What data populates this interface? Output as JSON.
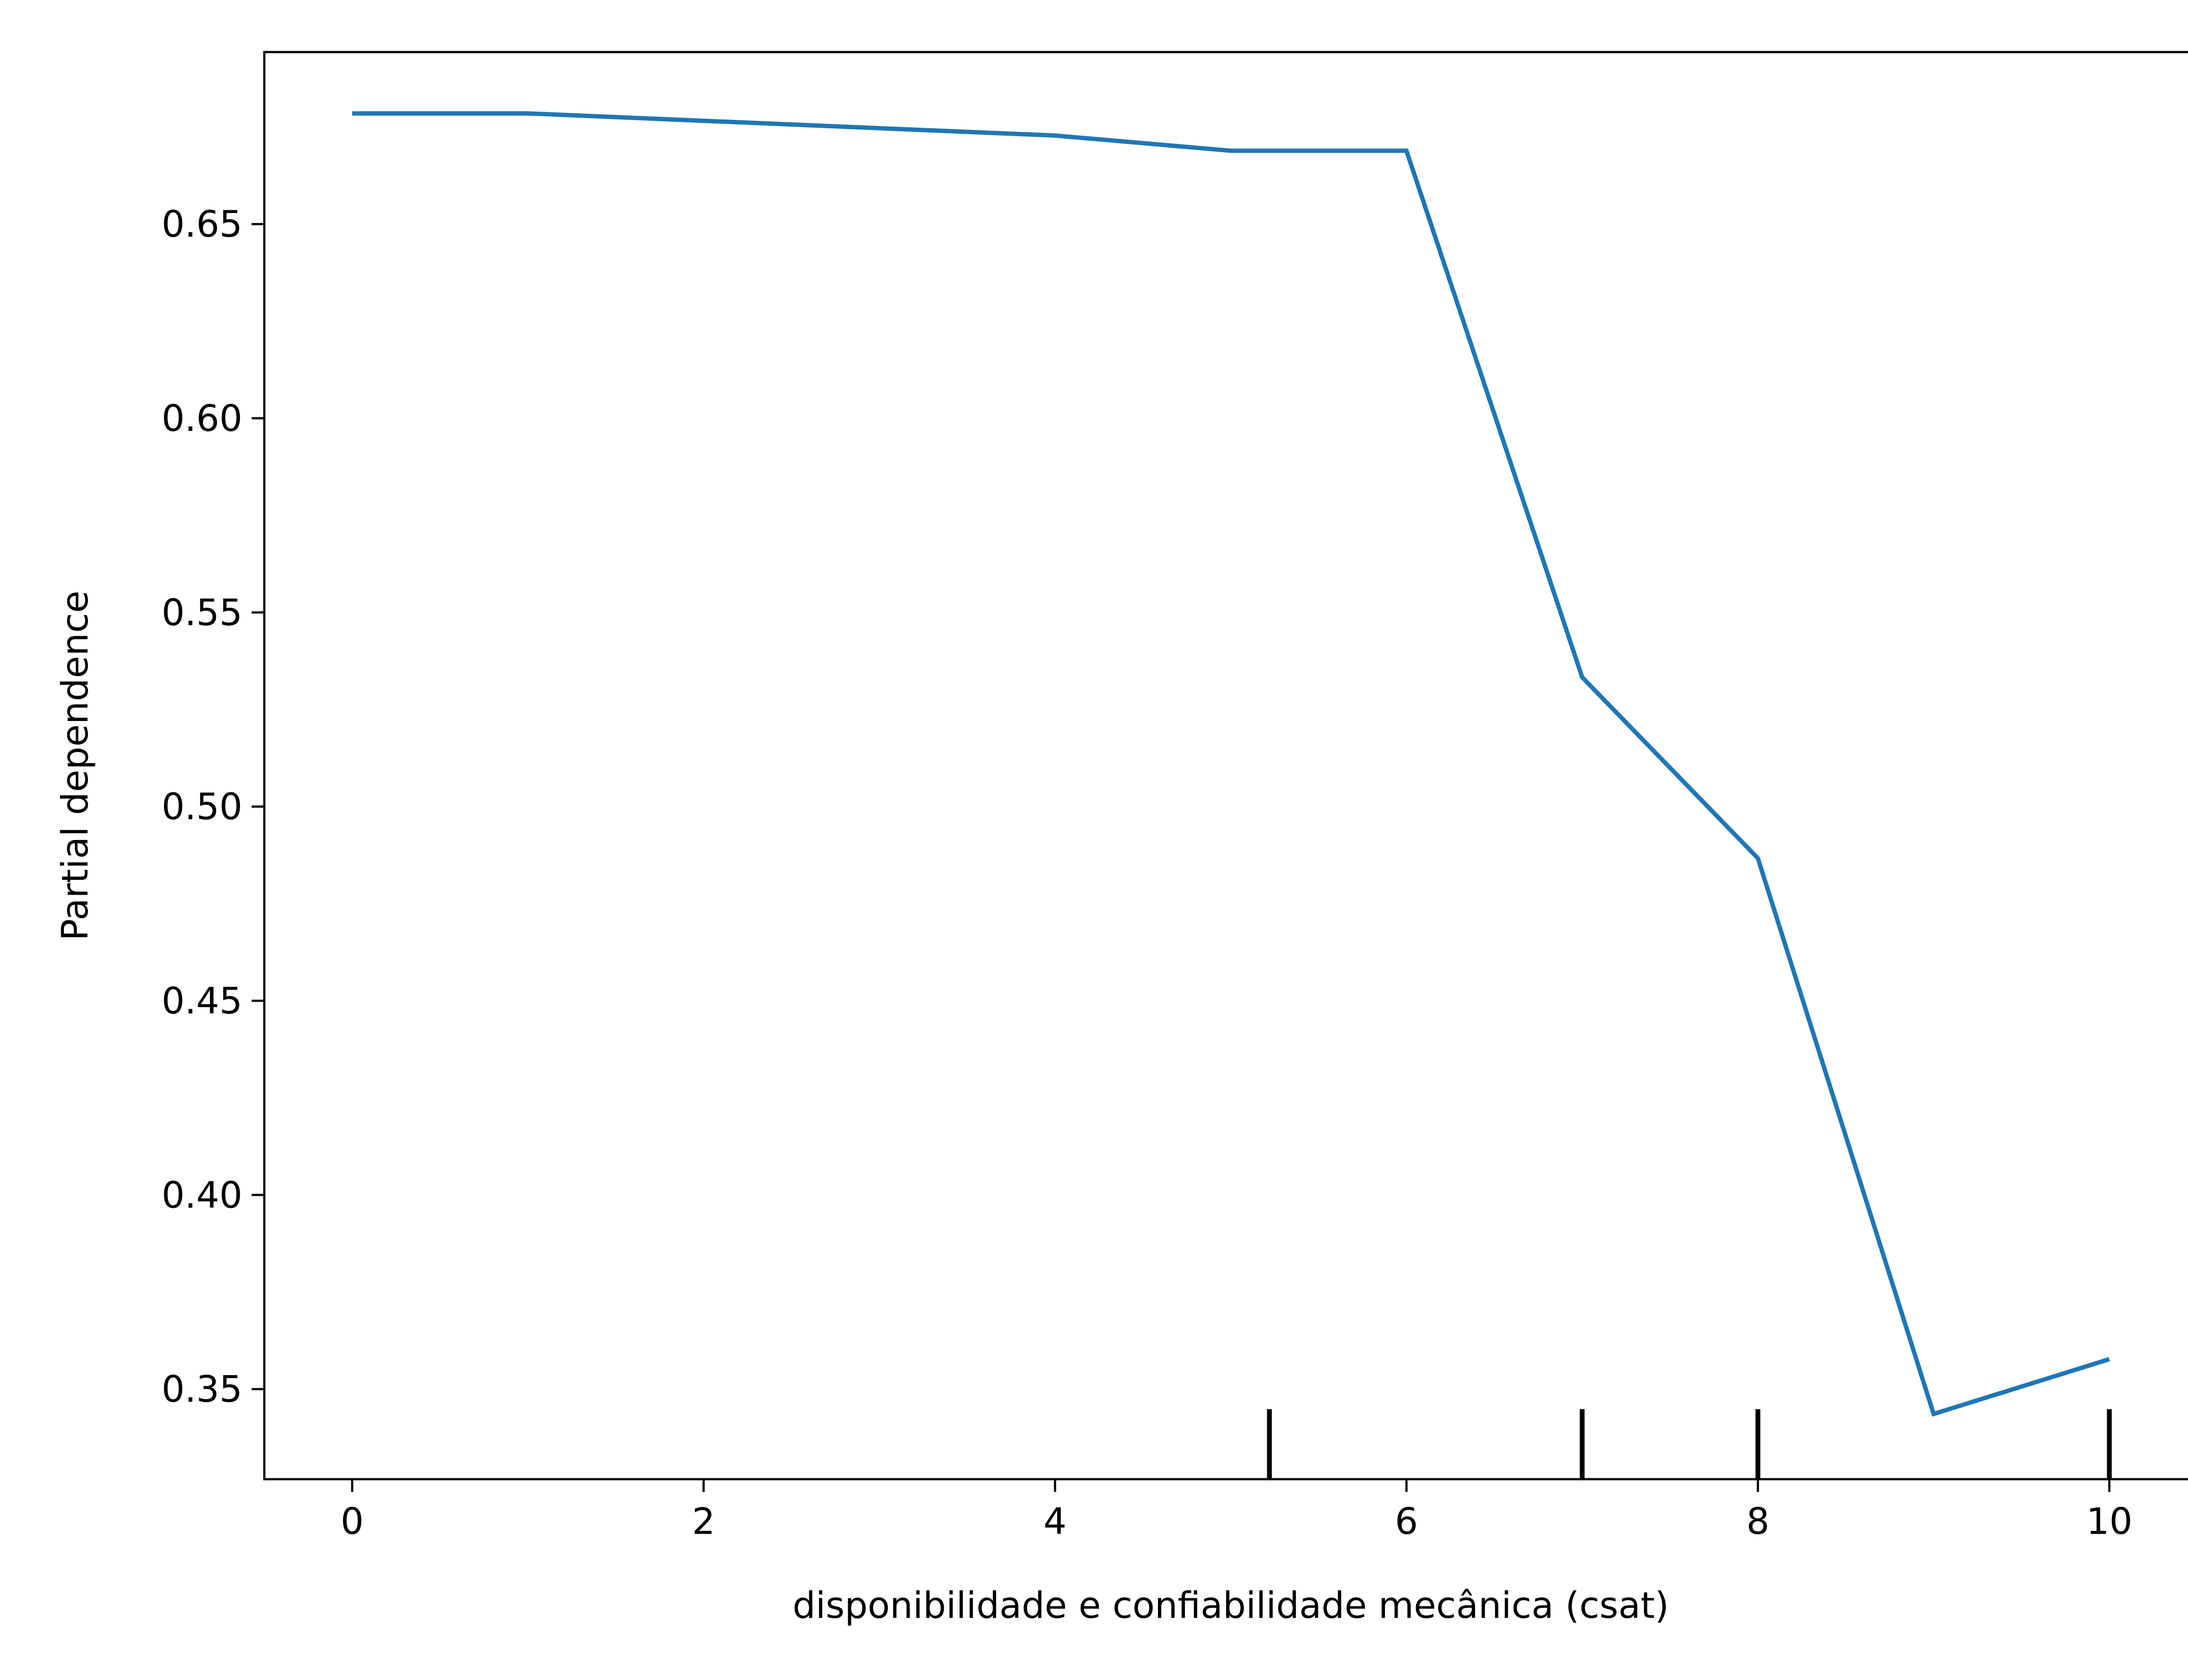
{
  "chart_data": {
    "type": "line",
    "xlabel": "disponibilidade e confiabilidade mecânica  (csat)",
    "ylabel": "Partial dependence",
    "xlim": [
      -0.5,
      10.5
    ],
    "ylim": [
      0.3268,
      0.6943
    ],
    "x_ticks": [
      0,
      2,
      4,
      6,
      8,
      10
    ],
    "y_ticks": [
      0.35,
      0.4,
      0.45,
      0.5,
      0.55,
      0.6,
      0.65
    ],
    "y_tick_labels": [
      "0.35",
      "0.40",
      "0.45",
      "0.50",
      "0.55",
      "0.60",
      "0.65"
    ],
    "x_tick_labels": [
      "0",
      "2",
      "4",
      "6",
      "8",
      "10"
    ],
    "grid": false,
    "series": [
      {
        "color": "#1f77b4",
        "x": [
          0,
          1,
          2,
          3,
          4,
          5,
          6,
          7,
          8,
          9,
          10
        ],
        "y": [
          0.6785,
          0.6785,
          0.6766,
          0.6747,
          0.6728,
          0.6689,
          0.6689,
          0.5333,
          0.4867,
          0.3436,
          0.3577
        ]
      }
    ],
    "rug": {
      "color": "#000000",
      "x": [
        5.22,
        7,
        8,
        10
      ]
    }
  }
}
